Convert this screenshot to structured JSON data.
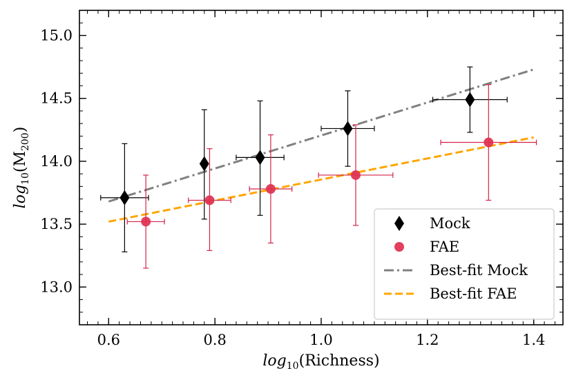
{
  "chart_data": {
    "type": "scatter",
    "title": "",
    "xlabel": "log10(Richness)",
    "ylabel": "log10(M200)",
    "xlabel_parts": {
      "italic": "log",
      "sub": "10",
      "rest": "(Richness)"
    },
    "ylabel_parts": {
      "italic": "log",
      "sub": "10",
      "open": "(M",
      "sub2": "200",
      "close": ")"
    },
    "xlim": [
      0.545,
      1.455
    ],
    "ylim": [
      12.7,
      15.2
    ],
    "xticks": [
      0.6,
      0.8,
      1.0,
      1.2,
      1.4
    ],
    "xtick_labels": [
      "0.6",
      "0.8",
      "1.0",
      "1.2",
      "1.4"
    ],
    "yticks": [
      13.0,
      13.5,
      14.0,
      14.5,
      15.0
    ],
    "ytick_labels": [
      "13.0",
      "13.5",
      "14.0",
      "14.5",
      "15.0"
    ],
    "xminor_step": 0.02,
    "yminor_step": 0.1,
    "grid": false,
    "legend_position": "lower-right",
    "series": [
      {
        "name": "Mock",
        "kind": "points",
        "marker": "diamond",
        "color": "#000000",
        "points": [
          {
            "x": 0.63,
            "y": 13.71,
            "xerr": [
              0.045,
              0.045
            ],
            "yerr": [
              0.43,
              0.43
            ]
          },
          {
            "x": 0.78,
            "y": 13.98,
            "xerr": [
              0.0,
              0.0
            ],
            "yerr": [
              0.44,
              0.43
            ]
          },
          {
            "x": 0.885,
            "y": 14.03,
            "xerr": [
              0.045,
              0.045
            ],
            "yerr": [
              0.46,
              0.45
            ]
          },
          {
            "x": 1.05,
            "y": 14.26,
            "xerr": [
              0.05,
              0.05
            ],
            "yerr": [
              0.3,
              0.3
            ]
          },
          {
            "x": 1.28,
            "y": 14.49,
            "xerr": [
              0.07,
              0.07
            ],
            "yerr": [
              0.26,
              0.26
            ]
          }
        ]
      },
      {
        "name": "FAE",
        "kind": "points",
        "marker": "circle",
        "color": "#e03050",
        "errcolor": "#d2214a",
        "points": [
          {
            "x": 0.67,
            "y": 13.52,
            "xerr": [
              0.035,
              0.035
            ],
            "yerr": [
              0.37,
              0.37
            ]
          },
          {
            "x": 0.79,
            "y": 13.69,
            "xerr": [
              0.04,
              0.04
            ],
            "yerr": [
              0.4,
              0.41
            ]
          },
          {
            "x": 0.905,
            "y": 13.78,
            "xerr": [
              0.04,
              0.04
            ],
            "yerr": [
              0.43,
              0.43
            ]
          },
          {
            "x": 1.065,
            "y": 13.89,
            "xerr": [
              0.07,
              0.07
            ],
            "yerr": [
              0.4,
              0.4
            ]
          },
          {
            "x": 1.315,
            "y": 14.15,
            "xerr": [
              0.09,
              0.09
            ],
            "yerr": [
              0.46,
              0.46
            ]
          }
        ]
      },
      {
        "name": "Best-fit Mock",
        "kind": "line",
        "style": "dashdot",
        "color": "#808080",
        "x": [
          0.6,
          1.4
        ],
        "y": [
          13.68,
          14.73
        ]
      },
      {
        "name": "Best-fit FAE",
        "kind": "line",
        "style": "dashed",
        "color": "#ffa500",
        "x": [
          0.6,
          1.4
        ],
        "y": [
          13.52,
          14.19
        ]
      }
    ]
  }
}
